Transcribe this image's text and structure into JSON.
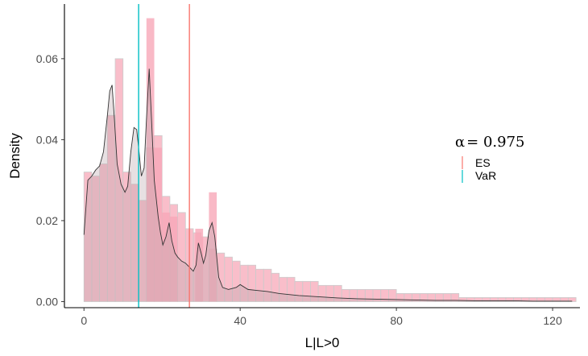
{
  "chart_data": {
    "type": "histogram",
    "xlabel": "L|L>0",
    "ylabel": "Density",
    "xlim": [
      -5,
      127
    ],
    "ylim": [
      -0.0015,
      0.0735
    ],
    "x_ticks": [
      0,
      40,
      80,
      120
    ],
    "x_tick_labels": [
      "0",
      "40",
      "80",
      "120"
    ],
    "y_ticks": [
      0.0,
      0.02,
      0.04,
      0.06
    ],
    "y_tick_labels": [
      "0.00",
      "0.02",
      "0.04",
      "0.06"
    ],
    "grid": false,
    "legend_position": "right",
    "legend_title_symbol": "α",
    "legend_title_value": "= 0.975",
    "histogram": {
      "bin_width": 2,
      "bin_start": 0,
      "values": [
        0.032,
        0.031,
        0.034,
        0.046,
        0.06,
        0.032,
        0.029,
        0.025,
        0.038,
        0.041,
        0.026,
        0.024,
        0.022,
        0.018,
        0.017,
        0.016,
        0.013,
        0.012,
        0.011,
        0.01,
        0.009,
        0.009,
        0.008,
        0.008,
        0.007,
        0.006,
        0.006,
        0.005,
        0.005,
        0.005,
        0.004,
        0.004,
        0.004,
        0.003,
        0.003,
        0.003,
        0.003,
        0.003,
        0.003,
        0.003,
        0.002,
        0.002,
        0.002,
        0.002,
        0.002,
        0.002,
        0.002,
        0.002,
        0.001,
        0.001,
        0.001,
        0.001,
        0.001,
        0.001,
        0.001,
        0.001,
        0.001,
        0.001,
        0.001,
        0.001,
        0.001,
        0.001,
        0.001
      ],
      "highlights": [
        {
          "x": 17,
          "value": 0.07
        },
        {
          "x": 19,
          "value": 0.038
        },
        {
          "x": 21,
          "value": 0.022
        },
        {
          "x": 23,
          "value": 0.021
        },
        {
          "x": 29.5,
          "value": 0.018
        },
        {
          "x": 33,
          "value": 0.027
        }
      ],
      "fill_color": "#f7a8b8",
      "grey_color": "#cccccc"
    },
    "density": {
      "x": [
        0,
        1,
        2,
        3,
        4,
        5,
        6,
        6.6,
        7.2,
        7.8,
        8.5,
        9.5,
        10.5,
        11.2,
        12,
        12.8,
        13.5,
        14.1,
        14.7,
        15.4,
        16,
        16.7,
        17.3,
        18,
        19,
        19.6,
        20.2,
        21,
        21.8,
        22.5,
        23.3,
        24,
        25,
        26,
        27,
        28,
        28.7,
        29.3,
        30,
        30.6,
        31.2,
        32,
        32.8,
        33.5,
        34.5,
        35.5,
        37,
        39,
        40,
        42,
        44,
        47,
        50,
        55,
        60,
        65,
        70,
        75,
        80,
        85,
        90,
        95,
        100,
        105,
        110,
        115,
        120,
        125
      ],
      "y": [
        0.0165,
        0.03,
        0.031,
        0.0325,
        0.0335,
        0.037,
        0.046,
        0.052,
        0.0535,
        0.045,
        0.034,
        0.029,
        0.027,
        0.0285,
        0.037,
        0.043,
        0.0425,
        0.037,
        0.031,
        0.033,
        0.045,
        0.0575,
        0.045,
        0.03,
        0.021,
        0.017,
        0.014,
        0.016,
        0.0195,
        0.015,
        0.012,
        0.011,
        0.01,
        0.0095,
        0.0085,
        0.0075,
        0.009,
        0.0145,
        0.012,
        0.0095,
        0.0115,
        0.0175,
        0.0195,
        0.016,
        0.006,
        0.0035,
        0.003,
        0.0035,
        0.0042,
        0.003,
        0.0028,
        0.0025,
        0.002,
        0.0015,
        0.0012,
        0.0009,
        0.0007,
        0.0006,
        0.0005,
        0.0004,
        0.0003,
        0.0003,
        0.0002,
        0.0002,
        0.0002,
        0.0001,
        0.0001,
        0.0001
      ],
      "color": "#333333"
    },
    "vlines": [
      {
        "name": "ES",
        "x": 27,
        "color": "#f8766d"
      },
      {
        "name": "VaR",
        "x": 14,
        "color": "#00bfc4"
      }
    ]
  }
}
